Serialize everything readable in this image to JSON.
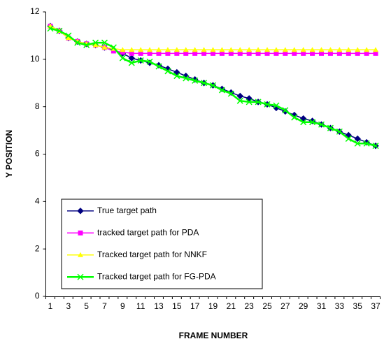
{
  "chart_data": {
    "type": "line",
    "x_label": "FRAME NUMBER",
    "y_label": "Y POSITION",
    "categories": [
      1,
      null,
      3,
      null,
      5,
      null,
      7,
      null,
      9,
      null,
      11,
      null,
      13,
      null,
      15,
      null,
      17,
      null,
      19,
      null,
      21,
      null,
      23,
      null,
      25,
      null,
      27,
      null,
      29,
      null,
      31,
      null,
      33,
      null,
      35,
      null,
      37
    ],
    "ylim": [
      0,
      12
    ],
    "yticks": [
      0,
      2,
      4,
      6,
      8,
      10,
      12
    ],
    "legend": "lower left",
    "series": [
      {
        "name": "True target path",
        "color": "#000080",
        "marker": "diamond",
        "values": [
          11.4,
          11.2,
          10.9,
          10.75,
          10.65,
          10.6,
          10.5,
          10.4,
          10.25,
          10.05,
          9.95,
          9.85,
          9.75,
          9.6,
          9.45,
          9.3,
          9.15,
          9.0,
          8.9,
          8.75,
          8.6,
          8.45,
          8.35,
          8.2,
          8.1,
          7.95,
          7.8,
          7.65,
          7.5,
          7.4,
          7.25,
          7.1,
          6.95,
          6.8,
          6.65,
          6.5,
          6.35
        ]
      },
      {
        "name": "tracked target path for PDA",
        "color": "#ff00ff",
        "marker": "square",
        "values": [
          11.4,
          11.2,
          10.9,
          10.75,
          10.65,
          10.6,
          10.5,
          10.35,
          10.3,
          10.25,
          10.25,
          10.25,
          10.25,
          10.25,
          10.25,
          10.25,
          10.25,
          10.25,
          10.25,
          10.25,
          10.25,
          10.25,
          10.25,
          10.25,
          10.25,
          10.25,
          10.25,
          10.25,
          10.25,
          10.25,
          10.25,
          10.25,
          10.25,
          10.25,
          10.25,
          10.25,
          10.25
        ]
      },
      {
        "name": "Tracked target path for NNKF",
        "color": "#ffff00",
        "marker": "triangle",
        "values": [
          11.4,
          11.2,
          10.9,
          10.75,
          10.65,
          10.6,
          10.5,
          10.45,
          10.4,
          10.4,
          10.4,
          10.4,
          10.4,
          10.4,
          10.4,
          10.4,
          10.4,
          10.4,
          10.4,
          10.4,
          10.4,
          10.4,
          10.4,
          10.4,
          10.4,
          10.4,
          10.4,
          10.4,
          10.4,
          10.4,
          10.4,
          10.4,
          10.4,
          10.4,
          10.4,
          10.4,
          10.4
        ]
      },
      {
        "name": "Tracked target path for FG-PDA",
        "color": "#00ff00",
        "marker": "x",
        "values": [
          11.3,
          11.2,
          11.0,
          10.7,
          10.6,
          10.7,
          10.7,
          10.5,
          10.05,
          9.85,
          9.95,
          9.9,
          9.7,
          9.5,
          9.3,
          9.2,
          9.1,
          9.0,
          8.9,
          8.7,
          8.55,
          8.25,
          8.2,
          8.2,
          8.1,
          8.05,
          7.85,
          7.55,
          7.35,
          7.35,
          7.25,
          7.1,
          6.95,
          6.65,
          6.45,
          6.45,
          6.35
        ]
      }
    ]
  }
}
